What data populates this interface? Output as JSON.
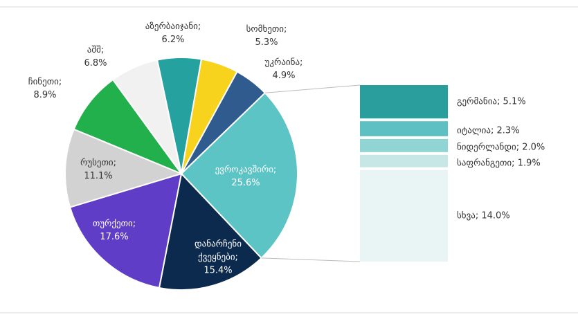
{
  "chart_data": {
    "type": "pie-of-bar",
    "pie": {
      "categories": [
        "აზერბაიჯანი;",
        "სომხეთი;",
        "უკრაინა;",
        "ევროკავშირი;",
        "დანარჩენი ქვეყნები;",
        "თურქეთი;",
        "რუსეთი;",
        "ჩინეთი;",
        "აშშ;"
      ],
      "values": [
        6.2,
        5.3,
        4.9,
        25.6,
        15.4,
        17.6,
        11.1,
        8.9,
        6.8
      ],
      "value_labels": [
        "6.2%",
        "5.3%",
        "4.9%",
        "25.6%",
        "15.4%",
        "17.6%",
        "11.1%",
        "8.9%",
        "6.8%"
      ],
      "colors": [
        "#25a29f",
        "#f7d31d",
        "#2f5b8e",
        "#5cc4c5",
        "#0c2a4e",
        "#5f3dc6",
        "#d2d2d2",
        "#22b04c",
        "#f1f1f1"
      ]
    },
    "bar": {
      "categories": [
        "გერმანია;",
        "იტალია;",
        "ნიდერლანდი;",
        "საფრანგეთი;",
        "სხვა;"
      ],
      "values": [
        5.1,
        2.3,
        2.0,
        1.9,
        14.0
      ],
      "value_labels": [
        "5.1%",
        "2.3%",
        "2.0%",
        "1.9%",
        "14.0%"
      ],
      "colors": [
        "#2a9e9c",
        "#5ec0c3",
        "#91d4d4",
        "#c7e7e7",
        "#e9f5f5"
      ]
    }
  }
}
